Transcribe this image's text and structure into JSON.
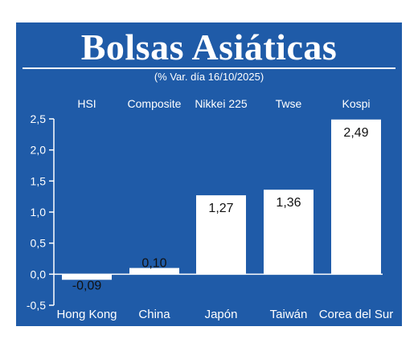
{
  "header": {
    "title": "Bolsas Asiáticas",
    "subtitle": "(% Var. día  16/10/2025)"
  },
  "colors": {
    "background": "#1f5ba8",
    "bar": "#ffffff",
    "text": "#ffffff",
    "label_text": "#111111"
  },
  "chart_data": {
    "type": "bar",
    "categories": [
      "Hong Kong",
      "China",
      "Japón",
      "Taiwán",
      "Corea del Sur"
    ],
    "index_names": [
      "HSI",
      "Composite",
      "Nikkei 225",
      "Twse",
      "Kospi"
    ],
    "values": [
      -0.09,
      0.1,
      1.27,
      1.36,
      2.49
    ],
    "value_labels": [
      "-0,09",
      "0,10",
      "1,27",
      "1,36",
      "2,49"
    ],
    "yticks": [
      "2,5",
      "2,0",
      "1,5",
      "1,0",
      "0,5",
      "0,0",
      "-0,5"
    ],
    "ytick_values": [
      2.5,
      2.0,
      1.5,
      1.0,
      0.5,
      0.0,
      -0.5
    ],
    "ylim": [
      -0.5,
      2.5
    ],
    "grid": false,
    "legend": "none"
  }
}
